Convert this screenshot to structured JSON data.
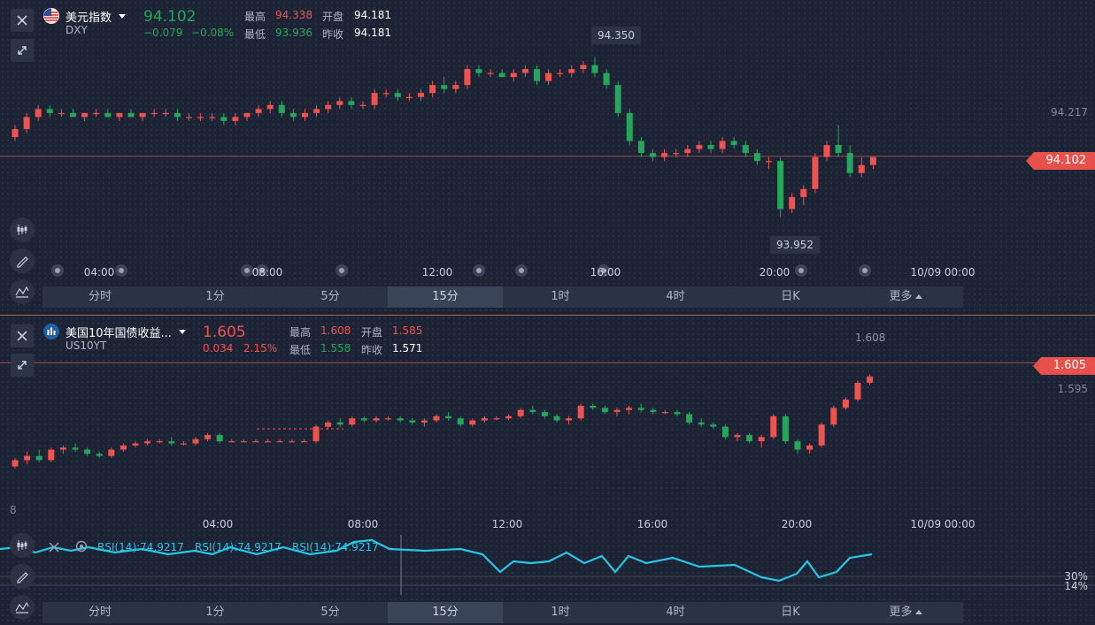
{
  "panel_top": {
    "symbol_name": "美元指数",
    "symbol_code": "DXY",
    "price": "94.102",
    "change": "−0.079",
    "change_pct": "−0.08%",
    "high_label": "最高",
    "high": "94.338",
    "open_label": "开盘",
    "open": "94.181",
    "low_label": "最低",
    "low": "93.936",
    "prev_label": "昨收",
    "prev": "94.181",
    "price_tag": "94.102",
    "axis_label": "94.217",
    "callout_high": "94.350",
    "callout_low": "93.952",
    "time_labels": [
      "04:00",
      "08:00",
      "12:00",
      "16:00",
      "20:00",
      "10/09 00:00"
    ]
  },
  "panel_bottom": {
    "symbol_name": "美国10年国债收益...",
    "symbol_code": "US10YT",
    "price": "1.605",
    "change": "0.034",
    "change_pct": "2.15%",
    "high_label": "最高",
    "high": "1.608",
    "open_label": "开盘",
    "open": "1.585",
    "low_label": "最低",
    "low": "1.558",
    "prev_label": "昨收",
    "prev": "1.571",
    "price_tag": "1.605",
    "axis_label": "1.595",
    "callout_high": "1.608",
    "partial_axis": "8",
    "time_labels": [
      "04:00",
      "08:00",
      "12:00",
      "16:00",
      "20:00",
      "10/09 00:00"
    ],
    "rsi_labels": [
      "RSI(14):74.9217",
      "RSI(14):74.9217",
      "RSI(14):74.9217"
    ],
    "rsi_levels": [
      "30%",
      "14%"
    ]
  },
  "timeframes": [
    "分时",
    "1分",
    "5分",
    "15分",
    "1时",
    "4时",
    "日K",
    "更多"
  ],
  "active_timeframe": "15分",
  "colors": {
    "up": "#ef5350",
    "down": "#26a65b",
    "rsi": "#27c6e6",
    "bg": "#1c2334"
  },
  "icons": [
    "close-icon",
    "expand-icon",
    "candlestick-icon",
    "draw-icon",
    "indicator-icon",
    "us-flag-icon",
    "bond-icon",
    "eye-icon",
    "settings-icon"
  ],
  "chart_data": [
    {
      "type": "candlestick",
      "title": "美元指数",
      "y_markers": {
        "last": 94.102,
        "high": 94.35,
        "low": 93.952,
        "axis": 94.217
      },
      "x_ticks": [
        "04:00",
        "08:00",
        "12:00",
        "16:00",
        "20:00",
        "10/09 00:00"
      ],
      "candles": [
        [
          94.15,
          94.18,
          94.14,
          94.17
        ],
        [
          94.17,
          94.21,
          94.16,
          94.2
        ],
        [
          94.2,
          94.23,
          94.19,
          94.22
        ],
        [
          94.22,
          94.23,
          94.2,
          94.21
        ],
        [
          94.21,
          94.22,
          94.2,
          94.21
        ],
        [
          94.21,
          94.22,
          94.2,
          94.2
        ],
        [
          94.2,
          94.21,
          94.19,
          94.21
        ],
        [
          94.21,
          94.22,
          94.2,
          94.21
        ],
        [
          94.21,
          94.22,
          94.2,
          94.2
        ],
        [
          94.2,
          94.21,
          94.19,
          94.21
        ],
        [
          94.21,
          94.22,
          94.2,
          94.2
        ],
        [
          94.2,
          94.21,
          94.19,
          94.21
        ],
        [
          94.21,
          94.22,
          94.2,
          94.21
        ],
        [
          94.21,
          94.22,
          94.2,
          94.21
        ],
        [
          94.21,
          94.22,
          94.19,
          94.2
        ],
        [
          94.2,
          94.21,
          94.19,
          94.2
        ],
        [
          94.2,
          94.21,
          94.19,
          94.2
        ],
        [
          94.2,
          94.21,
          94.19,
          94.2
        ],
        [
          94.2,
          94.21,
          94.18,
          94.19
        ],
        [
          94.19,
          94.21,
          94.18,
          94.2
        ],
        [
          94.2,
          94.21,
          94.19,
          94.21
        ],
        [
          94.21,
          94.23,
          94.2,
          94.22
        ],
        [
          94.22,
          94.24,
          94.21,
          94.23
        ],
        [
          94.23,
          94.24,
          94.2,
          94.21
        ],
        [
          94.21,
          94.22,
          94.19,
          94.2
        ],
        [
          94.2,
          94.22,
          94.19,
          94.21
        ],
        [
          94.21,
          94.23,
          94.2,
          94.22
        ],
        [
          94.22,
          94.24,
          94.21,
          94.23
        ],
        [
          94.23,
          94.25,
          94.22,
          94.24
        ],
        [
          94.24,
          94.25,
          94.22,
          94.23
        ],
        [
          94.23,
          94.24,
          94.22,
          94.23
        ],
        [
          94.23,
          94.27,
          94.22,
          94.26
        ],
        [
          94.26,
          94.27,
          94.25,
          94.26
        ],
        [
          94.26,
          94.27,
          94.24,
          94.25
        ],
        [
          94.25,
          94.26,
          94.24,
          94.25
        ],
        [
          94.25,
          94.27,
          94.24,
          94.26
        ],
        [
          94.26,
          94.29,
          94.25,
          94.28
        ],
        [
          94.28,
          94.3,
          94.26,
          94.27
        ],
        [
          94.27,
          94.29,
          94.26,
          94.28
        ],
        [
          94.28,
          94.33,
          94.27,
          94.32
        ],
        [
          94.32,
          94.33,
          94.3,
          94.31
        ],
        [
          94.31,
          94.32,
          94.3,
          94.31
        ],
        [
          94.31,
          94.32,
          94.3,
          94.3
        ],
        [
          94.3,
          94.32,
          94.29,
          94.31
        ],
        [
          94.31,
          94.33,
          94.3,
          94.32
        ],
        [
          94.32,
          94.33,
          94.28,
          94.29
        ],
        [
          94.29,
          94.32,
          94.28,
          94.31
        ],
        [
          94.31,
          94.32,
          94.3,
          94.31
        ],
        [
          94.31,
          94.33,
          94.3,
          94.32
        ],
        [
          94.32,
          94.34,
          94.31,
          94.33
        ],
        [
          94.33,
          94.35,
          94.3,
          94.31
        ],
        [
          94.31,
          94.32,
          94.27,
          94.28
        ],
        [
          94.28,
          94.29,
          94.2,
          94.21
        ],
        [
          94.21,
          94.22,
          94.13,
          94.14
        ],
        [
          94.14,
          94.15,
          94.1,
          94.11
        ],
        [
          94.11,
          94.12,
          94.09,
          94.1
        ],
        [
          94.1,
          94.12,
          94.09,
          94.11
        ],
        [
          94.11,
          94.12,
          94.1,
          94.11
        ],
        [
          94.11,
          94.13,
          94.1,
          94.12
        ],
        [
          94.12,
          94.14,
          94.11,
          94.13
        ],
        [
          94.13,
          94.14,
          94.11,
          94.12
        ],
        [
          94.12,
          94.15,
          94.11,
          94.14
        ],
        [
          94.14,
          94.15,
          94.12,
          94.13
        ],
        [
          94.13,
          94.14,
          94.1,
          94.11
        ],
        [
          94.11,
          94.12,
          94.08,
          94.09
        ],
        [
          94.09,
          94.1,
          94.07,
          94.09
        ],
        [
          94.09,
          94.1,
          93.95,
          93.97
        ],
        [
          93.97,
          94.01,
          93.96,
          94.0
        ],
        [
          94.0,
          94.03,
          93.98,
          94.02
        ],
        [
          94.02,
          94.11,
          94.01,
          94.1
        ],
        [
          94.1,
          94.14,
          94.09,
          94.13
        ],
        [
          94.13,
          94.18,
          94.1,
          94.11
        ],
        [
          94.11,
          94.13,
          94.05,
          94.06
        ],
        [
          94.06,
          94.1,
          94.05,
          94.08
        ],
        [
          94.08,
          94.1,
          94.07,
          94.1
        ]
      ]
    },
    {
      "type": "candlestick",
      "title": "美国10年国债收益...",
      "y_markers": {
        "last": 1.605,
        "high": 1.608,
        "axis": 1.595
      },
      "x_ticks": [
        "04:00",
        "08:00",
        "12:00",
        "16:00",
        "20:00",
        "10/09 00:00"
      ],
      "candles": [
        [
          1.549,
          1.553,
          1.548,
          1.552
        ],
        [
          1.552,
          1.556,
          1.55,
          1.554
        ],
        [
          1.554,
          1.557,
          1.551,
          1.552
        ],
        [
          1.552,
          1.558,
          1.551,
          1.557
        ],
        [
          1.557,
          1.559,
          1.555,
          1.558
        ],
        [
          1.558,
          1.56,
          1.556,
          1.557
        ],
        [
          1.557,
          1.558,
          1.554,
          1.555
        ],
        [
          1.555,
          1.556,
          1.553,
          1.554
        ],
        [
          1.554,
          1.558,
          1.553,
          1.557
        ],
        [
          1.557,
          1.56,
          1.556,
          1.559
        ],
        [
          1.559,
          1.561,
          1.558,
          1.56
        ],
        [
          1.56,
          1.562,
          1.559,
          1.561
        ],
        [
          1.561,
          1.562,
          1.56,
          1.561
        ],
        [
          1.561,
          1.563,
          1.559,
          1.56
        ],
        [
          1.56,
          1.561,
          1.559,
          1.56
        ],
        [
          1.56,
          1.563,
          1.559,
          1.562
        ],
        [
          1.562,
          1.565,
          1.561,
          1.564
        ],
        [
          1.564,
          1.565,
          1.56,
          1.561
        ],
        [
          1.561,
          1.562,
          1.561,
          1.561
        ],
        [
          1.561,
          1.562,
          1.561,
          1.561
        ],
        [
          1.561,
          1.562,
          1.561,
          1.561
        ],
        [
          1.561,
          1.562,
          1.561,
          1.561
        ],
        [
          1.561,
          1.562,
          1.561,
          1.561
        ],
        [
          1.561,
          1.562,
          1.561,
          1.561
        ],
        [
          1.561,
          1.562,
          1.561,
          1.561
        ],
        [
          1.561,
          1.569,
          1.56,
          1.568
        ],
        [
          1.568,
          1.571,
          1.567,
          1.57
        ],
        [
          1.57,
          1.572,
          1.568,
          1.569
        ],
        [
          1.569,
          1.573,
          1.568,
          1.572
        ],
        [
          1.572,
          1.573,
          1.57,
          1.571
        ],
        [
          1.571,
          1.573,
          1.57,
          1.572
        ],
        [
          1.572,
          1.573,
          1.571,
          1.572
        ],
        [
          1.572,
          1.573,
          1.57,
          1.571
        ],
        [
          1.571,
          1.572,
          1.569,
          1.57
        ],
        [
          1.57,
          1.572,
          1.568,
          1.571
        ],
        [
          1.571,
          1.574,
          1.57,
          1.573
        ],
        [
          1.573,
          1.575,
          1.571,
          1.572
        ],
        [
          1.572,
          1.573,
          1.568,
          1.569
        ],
        [
          1.569,
          1.572,
          1.568,
          1.571
        ],
        [
          1.571,
          1.573,
          1.57,
          1.572
        ],
        [
          1.572,
          1.573,
          1.571,
          1.572
        ],
        [
          1.572,
          1.574,
          1.571,
          1.573
        ],
        [
          1.573,
          1.577,
          1.572,
          1.576
        ],
        [
          1.576,
          1.578,
          1.574,
          1.575
        ],
        [
          1.575,
          1.576,
          1.572,
          1.573
        ],
        [
          1.573,
          1.574,
          1.57,
          1.571
        ],
        [
          1.571,
          1.573,
          1.569,
          1.572
        ],
        [
          1.572,
          1.579,
          1.571,
          1.578
        ],
        [
          1.578,
          1.579,
          1.576,
          1.577
        ],
        [
          1.577,
          1.578,
          1.574,
          1.575
        ],
        [
          1.575,
          1.577,
          1.573,
          1.576
        ],
        [
          1.576,
          1.578,
          1.574,
          1.577
        ],
        [
          1.577,
          1.579,
          1.575,
          1.576
        ],
        [
          1.576,
          1.577,
          1.574,
          1.575
        ],
        [
          1.575,
          1.576,
          1.574,
          1.575
        ],
        [
          1.575,
          1.576,
          1.573,
          1.574
        ],
        [
          1.574,
          1.575,
          1.569,
          1.57
        ],
        [
          1.57,
          1.572,
          1.568,
          1.569
        ],
        [
          1.569,
          1.57,
          1.567,
          1.568
        ],
        [
          1.568,
          1.569,
          1.562,
          1.563
        ],
        [
          1.563,
          1.565,
          1.561,
          1.564
        ],
        [
          1.564,
          1.565,
          1.56,
          1.561
        ],
        [
          1.561,
          1.564,
          1.558,
          1.563
        ],
        [
          1.563,
          1.574,
          1.562,
          1.573
        ],
        [
          1.573,
          1.574,
          1.56,
          1.561
        ],
        [
          1.561,
          1.562,
          1.555,
          1.557
        ],
        [
          1.557,
          1.56,
          1.555,
          1.559
        ],
        [
          1.559,
          1.57,
          1.558,
          1.569
        ],
        [
          1.569,
          1.578,
          1.568,
          1.577
        ],
        [
          1.577,
          1.582,
          1.576,
          1.581
        ],
        [
          1.581,
          1.59,
          1.58,
          1.589
        ],
        [
          1.589,
          1.593,
          1.588,
          1.592
        ]
      ]
    }
  ]
}
